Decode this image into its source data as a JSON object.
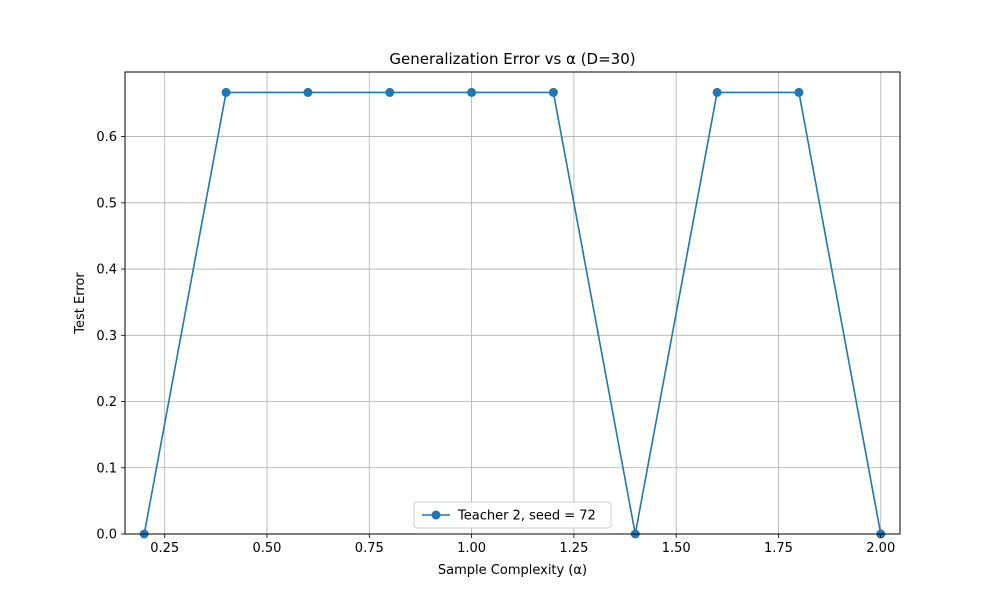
{
  "chart_data": {
    "type": "line",
    "title": "Generalization Error vs α (D=30)",
    "xlabel": "Sample Complexity (α)",
    "ylabel": "Test Error",
    "xlim": [
      0.153,
      2.047
    ],
    "ylim": [
      0,
      0.6975
    ],
    "grid": true,
    "legend_position": "bottom-center",
    "x_ticks": [
      0.25,
      0.5,
      0.75,
      1.0,
      1.25,
      1.5,
      1.75,
      2.0
    ],
    "x_tick_labels": [
      "0.25",
      "0.50",
      "0.75",
      "1.00",
      "1.25",
      "1.50",
      "1.75",
      "2.00"
    ],
    "y_ticks": [
      0.0,
      0.1,
      0.2,
      0.3,
      0.4,
      0.5,
      0.6
    ],
    "y_tick_labels": [
      "0.0",
      "0.1",
      "0.2",
      "0.3",
      "0.4",
      "0.5",
      "0.6"
    ],
    "series": [
      {
        "name": "Teacher 2, seed = 72",
        "color": "#1f77b4",
        "marker": "circle",
        "x": [
          0.2,
          0.4,
          0.6,
          0.8,
          1.0,
          1.2,
          1.4,
          1.6,
          1.8,
          2.0
        ],
        "y": [
          0.0,
          0.6667,
          0.6667,
          0.6667,
          0.6667,
          0.6667,
          0.0,
          0.6667,
          0.6667,
          0.0
        ]
      }
    ]
  },
  "colors": {
    "grid": "#b0b0b0",
    "axis": "#000000",
    "background": "#ffffff"
  }
}
